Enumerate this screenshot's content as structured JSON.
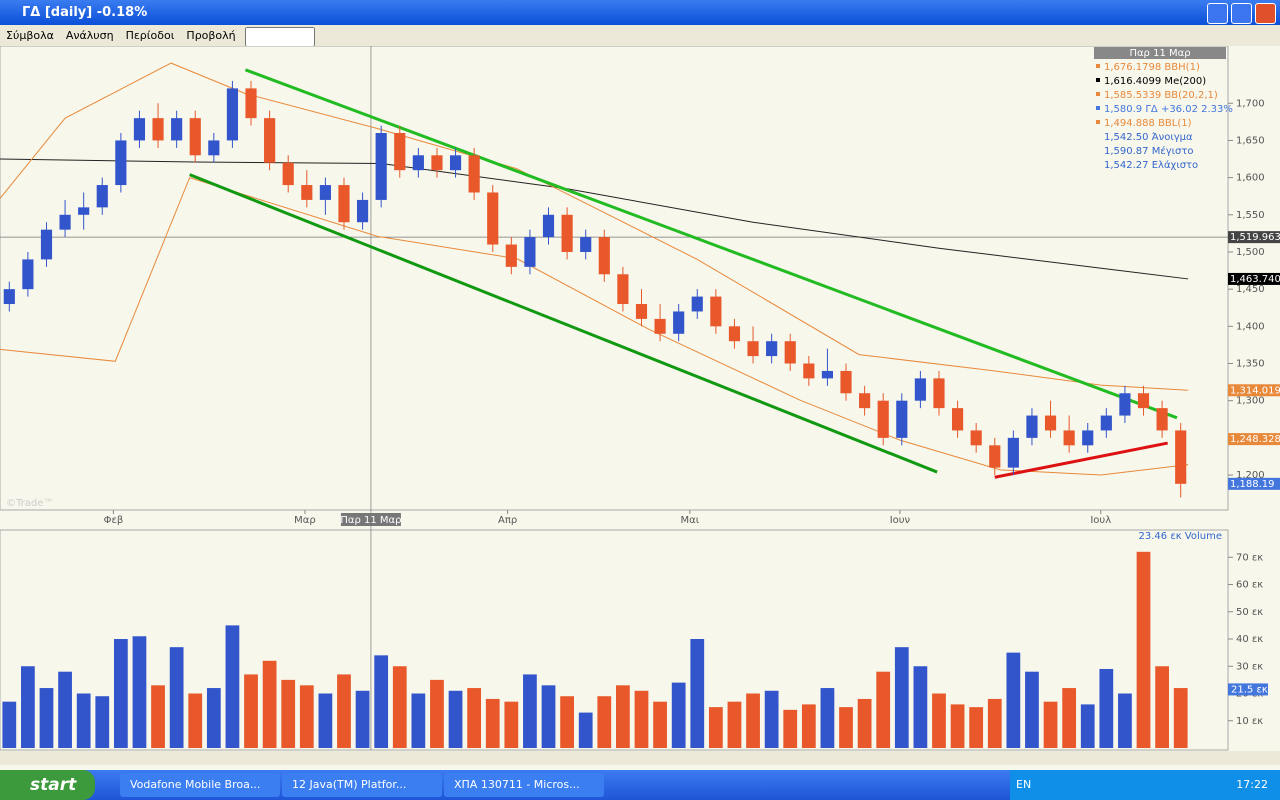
{
  "window": {
    "title": "ΓΔ [daily] -0.18%",
    "menu": [
      "Σύμβολα",
      "Ανάλυση",
      "Περίοδοι",
      "Προβολή"
    ],
    "watermark": "©Trade™"
  },
  "taskbar": {
    "start": "start",
    "tasks": [
      "Vodafone Mobile Broa...",
      "12 Java(TM) Platfor...",
      "ΧΠΑ 130711 - Micros..."
    ],
    "lang": "EN",
    "clock": "17:22"
  },
  "chart_data": [
    {
      "type": "candlestick",
      "up_color": "#3355cc",
      "down_color": "#e8582a",
      "open": [
        1430,
        1450,
        1490,
        1530,
        1550,
        1560,
        1590,
        1650,
        1680,
        1650,
        1680,
        1630,
        1650,
        1720,
        1680,
        1620,
        1590,
        1570,
        1590,
        1540,
        1570,
        1660,
        1610,
        1630,
        1610,
        1630,
        1580,
        1510,
        1480,
        1520,
        1550,
        1500,
        1520,
        1470,
        1430,
        1410,
        1390,
        1420,
        1440,
        1400,
        1380,
        1360,
        1380,
        1350,
        1330,
        1340,
        1310,
        1300,
        1250,
        1300,
        1330,
        1290,
        1260,
        1240,
        1210,
        1250,
        1280,
        1260,
        1240,
        1260,
        1280,
        1310,
        1290,
        1260
      ],
      "high": [
        1460,
        1500,
        1540,
        1570,
        1580,
        1600,
        1660,
        1690,
        1700,
        1690,
        1690,
        1660,
        1730,
        1730,
        1690,
        1630,
        1610,
        1600,
        1600,
        1580,
        1670,
        1670,
        1640,
        1640,
        1640,
        1640,
        1590,
        1520,
        1530,
        1560,
        1560,
        1530,
        1530,
        1480,
        1450,
        1430,
        1430,
        1450,
        1450,
        1410,
        1400,
        1390,
        1390,
        1360,
        1370,
        1350,
        1320,
        1310,
        1310,
        1340,
        1340,
        1300,
        1270,
        1250,
        1260,
        1290,
        1300,
        1280,
        1270,
        1290,
        1320,
        1320,
        1300,
        1270
      ],
      "low": [
        1420,
        1440,
        1480,
        1520,
        1530,
        1550,
        1580,
        1640,
        1640,
        1640,
        1620,
        1620,
        1640,
        1670,
        1610,
        1580,
        1560,
        1550,
        1530,
        1530,
        1560,
        1600,
        1600,
        1600,
        1600,
        1570,
        1500,
        1470,
        1470,
        1510,
        1490,
        1490,
        1460,
        1420,
        1400,
        1380,
        1380,
        1410,
        1390,
        1370,
        1350,
        1350,
        1340,
        1320,
        1320,
        1300,
        1280,
        1240,
        1240,
        1290,
        1280,
        1250,
        1230,
        1200,
        1200,
        1240,
        1250,
        1230,
        1230,
        1250,
        1270,
        1280,
        1250,
        1170
      ],
      "close": [
        1450,
        1490,
        1530,
        1550,
        1560,
        1590,
        1650,
        1680,
        1650,
        1680,
        1630,
        1650,
        1720,
        1680,
        1620,
        1590,
        1570,
        1590,
        1540,
        1570,
        1660,
        1610,
        1630,
        1610,
        1630,
        1580,
        1510,
        1480,
        1520,
        1550,
        1500,
        1520,
        1470,
        1430,
        1410,
        1390,
        1420,
        1440,
        1400,
        1380,
        1360,
        1380,
        1350,
        1330,
        1340,
        1310,
        1290,
        1250,
        1300,
        1330,
        1290,
        1260,
        1240,
        1210,
        1250,
        1280,
        1260,
        1240,
        1260,
        1280,
        1310,
        1290,
        1260,
        1188.19
      ],
      "overlays": [
        {
          "name": "Me(200)",
          "color": "#222222",
          "x": [
            -0.5,
            10,
            20,
            30,
            40,
            50,
            63.4
          ],
          "values": [
            1625,
            1621,
            1619,
            1585,
            1540,
            1505,
            1463.74
          ]
        },
        {
          "name": "BBH",
          "color": "#e8893a",
          "x": [
            -0.5,
            3,
            8.7,
            12.7,
            19.8,
            27.3,
            37,
            45.7,
            52.7,
            58.7,
            63.4
          ],
          "values": [
            1572,
            1680,
            1754,
            1713,
            1666,
            1612,
            1490,
            1362,
            1341,
            1321,
            1314.019
          ]
        },
        {
          "name": "BBL",
          "color": "#e8893a",
          "x": [
            -0.5,
            5.7,
            9.7,
            19.8,
            27.3,
            34.4,
            42.5,
            47.9,
            53.3,
            58.7,
            63.4
          ],
          "values": [
            1369,
            1353,
            1600,
            1521,
            1491,
            1396,
            1301,
            1247,
            1207,
            1200,
            1214
          ]
        }
      ],
      "trendlines": [
        {
          "color": "#22bb22",
          "x": [
            12.7,
            62.8
          ],
          "values": [
            1745,
            1277
          ]
        },
        {
          "color": "#119911",
          "x": [
            9.7,
            49.9
          ],
          "values": [
            1604,
            1204
          ]
        },
        {
          "color": "#dd1111",
          "x": [
            53,
            62.3
          ],
          "values": [
            1197,
            1243
          ]
        }
      ],
      "xlim": [
        -0.5,
        63.5
      ],
      "ylim": [
        1153,
        1777
      ],
      "yticks": [
        {
          "value": 1200,
          "label": "1,200"
        },
        {
          "value": 1250,
          "label": "1,250"
        },
        {
          "value": 1300,
          "label": "1,300"
        },
        {
          "value": 1350,
          "label": "1,350"
        },
        {
          "value": 1400,
          "label": "1,400"
        },
        {
          "value": 1450,
          "label": "1,450"
        },
        {
          "value": 1500,
          "label": "1,500"
        },
        {
          "value": 1550,
          "label": "1,550"
        },
        {
          "value": 1600,
          "label": "1,600"
        },
        {
          "value": 1650,
          "label": "1,650"
        },
        {
          "value": 1700,
          "label": "1,700"
        }
      ],
      "xticks": [
        {
          "value": 5.6,
          "label": "Φεβ"
        },
        {
          "value": 15.9,
          "label": "Μαρ"
        },
        {
          "value": 26.8,
          "label": "Απρ"
        },
        {
          "value": 36.6,
          "label": "Μαι"
        },
        {
          "value": 47.9,
          "label": "Ιουν"
        },
        {
          "value": 58.7,
          "label": "Ιουλ"
        }
      ],
      "crosshair": {
        "x": 19.45,
        "y": {
          "value": 1519.963,
          "label": "1,519.963"
        },
        "label": "Παρ 11 Μαρ"
      },
      "price_tags": [
        {
          "value": 1463.74,
          "label": "1,463.740",
          "color": "#000000"
        },
        {
          "value": 1314.019,
          "label": "1,314.019",
          "color": "#e8893a"
        },
        {
          "value": 1248.328,
          "label": "1,248.328",
          "color": "#e8893a"
        },
        {
          "value": 1188.19,
          "label": "1,188.19",
          "color": "#4477dd"
        }
      ],
      "legend": {
        "title": "Παρ 11 Μαρ",
        "items": [
          {
            "text": "1,676.1798 BBH(1)",
            "color": "#e8893a"
          },
          {
            "text": "1,616.4099 Me(200)",
            "color": "#000000"
          },
          {
            "text": "1,585.5339 BB(20,2,1)",
            "color": "#e8893a"
          },
          {
            "text": "1,580.9 ΓΔ +36.02 2.33%",
            "color": "#4477dd"
          },
          {
            "text": "1,494.888 BBL(1)",
            "color": "#e8893a"
          }
        ],
        "stats": [
          "1,542.50 Άνοιγμα",
          "1,590.87 Μέγιστο",
          "1,542.27 Ελάχιστο"
        ]
      }
    },
    {
      "type": "bar",
      "title": "23.46 εκ Volume",
      "values": [
        17,
        30,
        22,
        28,
        20,
        19,
        40,
        41,
        23,
        37,
        20,
        22,
        45,
        27,
        32,
        25,
        23,
        20,
        27,
        21,
        34,
        30,
        20,
        25,
        21,
        22,
        18,
        17,
        27,
        23,
        19,
        13,
        19,
        23,
        21,
        17,
        24,
        40,
        15,
        17,
        20,
        21,
        14,
        16,
        22,
        15,
        18,
        28,
        37,
        30,
        20,
        16,
        15,
        18,
        35,
        28,
        17,
        22,
        16,
        29,
        20,
        72,
        30,
        22
      ],
      "ylim": [
        0,
        80
      ],
      "yticks": [
        {
          "value": 10,
          "label": "10 εκ"
        },
        {
          "value": 20,
          "label": "20 εκ"
        },
        {
          "value": 30,
          "label": "30 εκ"
        },
        {
          "value": 40,
          "label": "40 εκ"
        },
        {
          "value": 50,
          "label": "50 εκ"
        },
        {
          "value": 60,
          "label": "60 εκ"
        },
        {
          "value": 70,
          "label": "70 εκ"
        }
      ],
      "tag": {
        "value": 21.5,
        "label": "21.5 εκ"
      }
    }
  ]
}
